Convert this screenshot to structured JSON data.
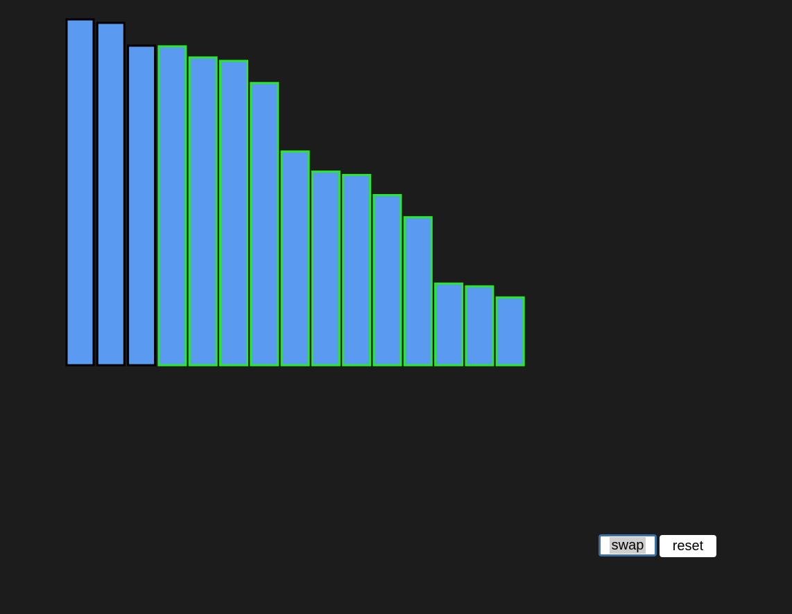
{
  "chart_data": {
    "type": "bar",
    "values": [
      100,
      99,
      92.4,
      92.2,
      89,
      88,
      81.6,
      61.8,
      56,
      55,
      49.2,
      42.8,
      23.6,
      22.8,
      19.6
    ],
    "states": [
      "unsorted",
      "unsorted",
      "unsorted",
      "sorted",
      "sorted",
      "sorted",
      "sorted",
      "sorted",
      "sorted",
      "sorted",
      "sorted",
      "sorted",
      "sorted",
      "sorted",
      "sorted"
    ],
    "ylim": [
      0,
      100
    ]
  },
  "colors": {
    "background": "#1c1c1c",
    "bar_fill": "#5b9af1",
    "unsorted_border": "#000000",
    "sorted_border": "#27e82a"
  },
  "controls": {
    "swap_label": "swap",
    "reset_label": "reset"
  }
}
